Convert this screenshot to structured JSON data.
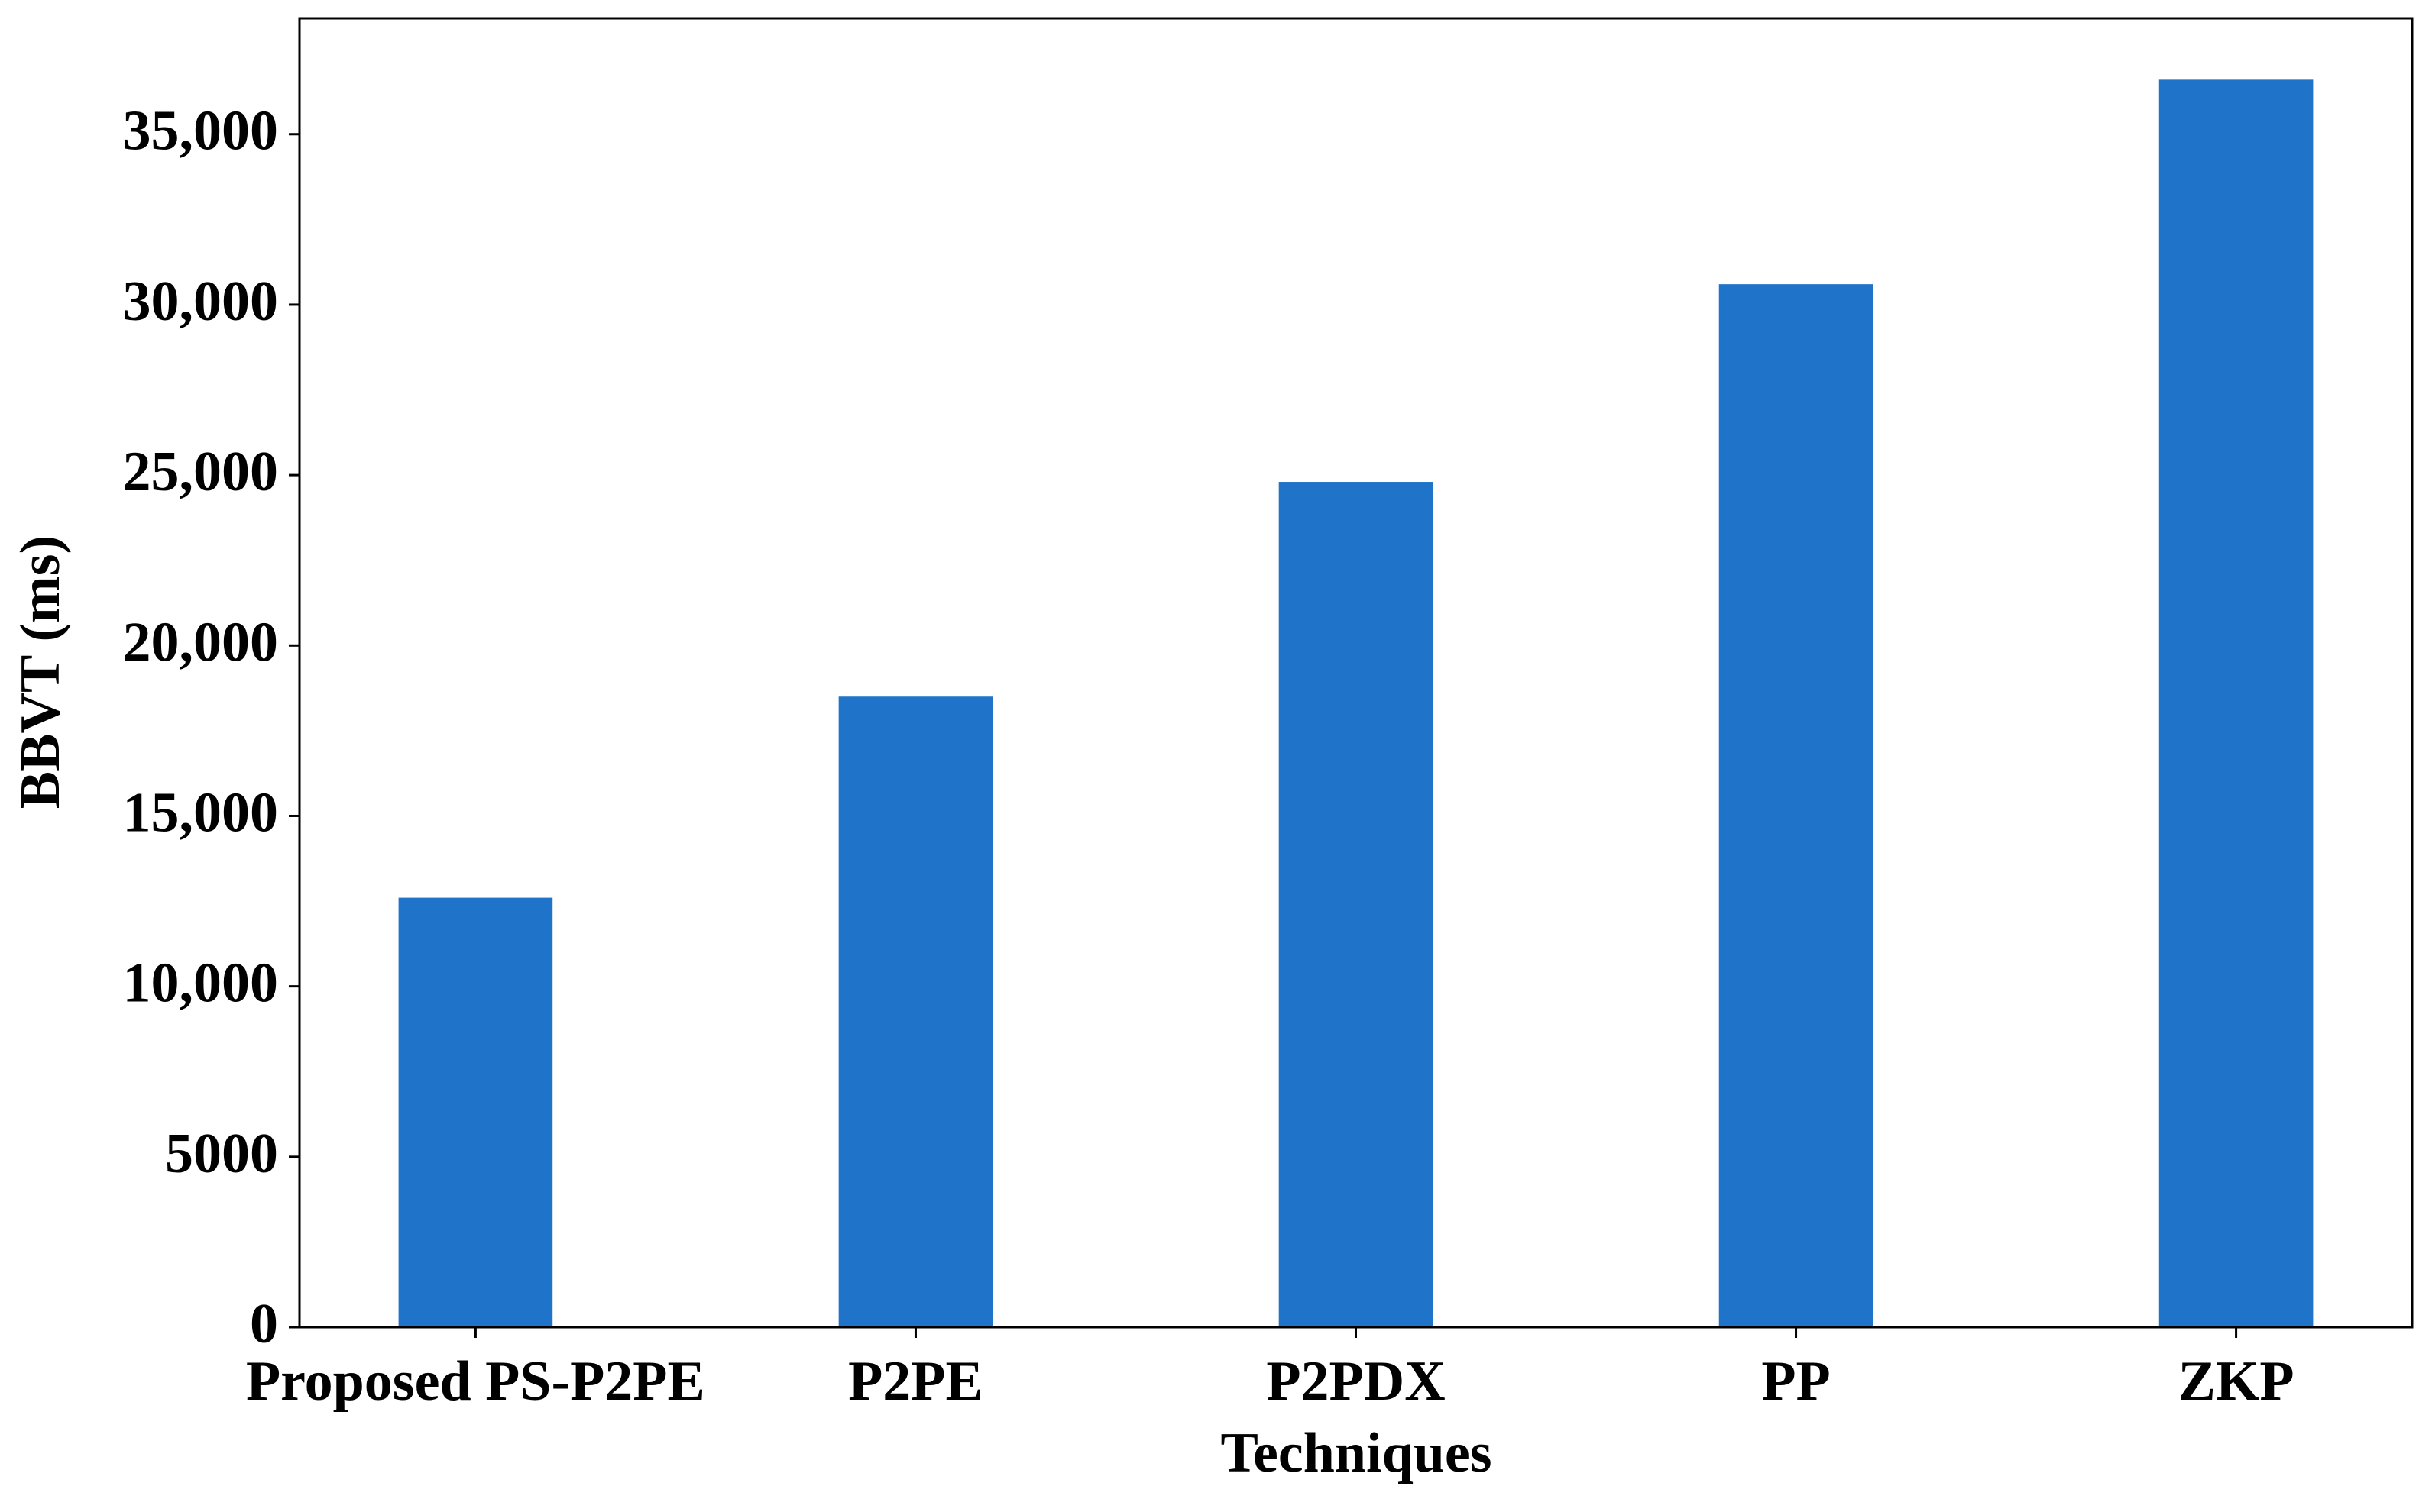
{
  "chart_data": {
    "type": "bar",
    "x_label": "Techniques",
    "y_label": "BBVT (ms)",
    "categories": [
      "Proposed PS-P2PE",
      "P2PE",
      "P2PDX",
      "PP",
      "ZKP"
    ],
    "values": [
      12600,
      18500,
      24800,
      30600,
      36600
    ],
    "color": "#1f73c9",
    "ylim": [
      0,
      38400
    ],
    "yticks": [
      0,
      5000,
      {
        "value": 10000,
        "label": "10,000"
      },
      {
        "value": 15000,
        "label": "15,000"
      },
      {
        "value": 20000,
        "label": "20,000"
      },
      {
        "value": 25000,
        "label": "25,000"
      },
      {
        "value": 30000,
        "label": "30,000"
      },
      {
        "value": 35000,
        "label": "35,000"
      }
    ],
    "grid": false
  }
}
